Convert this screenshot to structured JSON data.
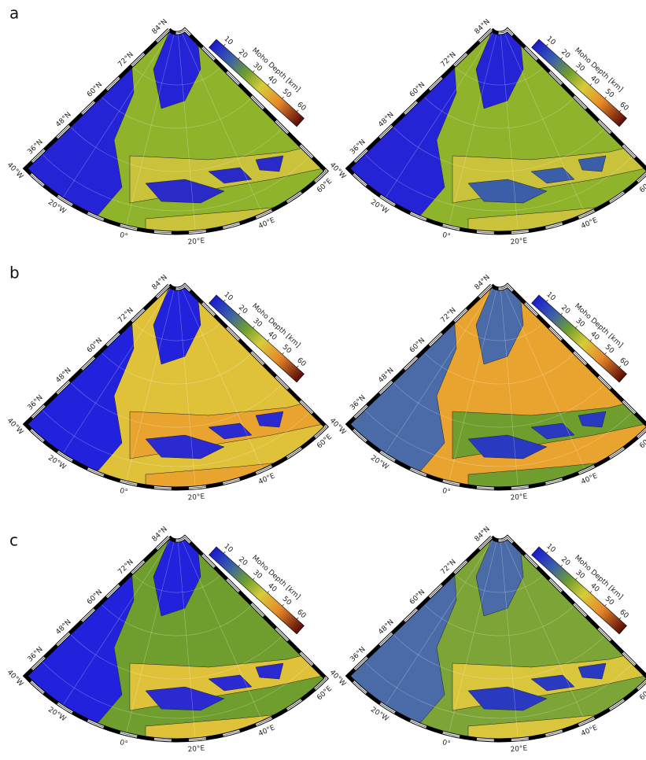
{
  "panels": [
    {
      "label": "a"
    },
    {
      "label": "b"
    },
    {
      "label": "c"
    }
  ],
  "map": {
    "lat_labels": [
      "84°N",
      "72°N",
      "60°N",
      "48°N",
      "36°N"
    ],
    "lon_labels": [
      "40°W",
      "20°W",
      "0°",
      "20°E",
      "40°E",
      "60°E"
    ]
  },
  "colorbar": {
    "title": "Moho Depth [km]",
    "ticks": [
      10,
      20,
      30,
      40,
      50,
      60
    ],
    "lim": [
      5,
      65
    ]
  }
}
